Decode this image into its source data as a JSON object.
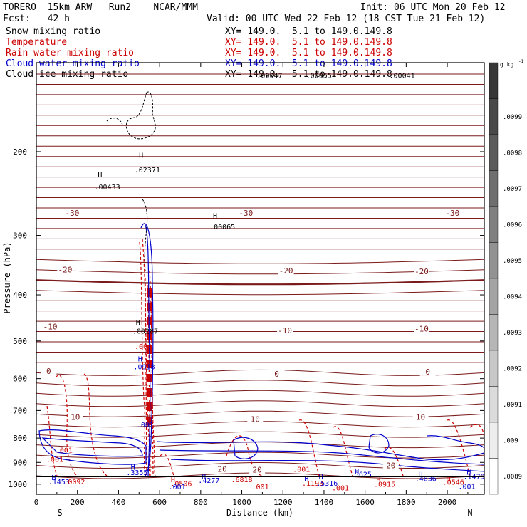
{
  "header": {
    "model": "TORERO  15km ARW   Run2    NCAR/MMM",
    "init": "Init: 06 UTC Mon 20 Feb 12",
    "fcst": "Fcst:   42 h",
    "valid": "Valid: 00 UTC Wed 22 Feb 12 (18 CST Tue 21 Feb 12)"
  },
  "legend": [
    {
      "label": "Snow mixing ratio",
      "xy": "XY= 149.0.  5.1 to 149.0.149.8",
      "color": "#000000"
    },
    {
      "label": "Temperature",
      "xy": "XY= 149.0.  5.1 to 149.0.149.8",
      "color": "#cc0000"
    },
    {
      "label": "Rain water mixing ratio",
      "xy": "XY= 149.0.  5.1 to 149.0.149.8",
      "color": "#cc0000"
    },
    {
      "label": "Cloud water mixing ratio",
      "xy": "XY= 149.0.  5.1 to 149.0.149.8",
      "color": "#0000cc"
    },
    {
      "label": "Cloud ice mixing ratio",
      "xy": "XY= 149.0.  5.1 to 149.0.149.8",
      "color": "#000000"
    }
  ],
  "chart_data": {
    "type": "contour",
    "xlabel": "Distance (km)",
    "ylabel": "Pressure (hPa)",
    "x_ticks": [
      0,
      200,
      400,
      600,
      800,
      1000,
      1200,
      1400,
      1600,
      1800,
      2000
    ],
    "y_ticks": [
      200,
      300,
      400,
      500,
      600,
      700,
      800,
      900,
      1000
    ],
    "xlim": [
      0,
      2180
    ],
    "y_scale": "log",
    "ylim": [
      1050,
      130
    ],
    "endpoints": {
      "left": "S",
      "right": "N"
    },
    "colorbar": {
      "unit": "g kg",
      "unit_exp": "-1",
      "ticks": [
        ".0099",
        ".0098",
        ".0097",
        ".0096",
        ".0095",
        ".0094",
        ".0093",
        ".0092",
        ".0091",
        ".009",
        ".0089"
      ]
    },
    "temperature_labels": [
      {
        "text": "-30",
        "x": 175,
        "p": 270
      },
      {
        "text": "-30",
        "x": 1020,
        "p": 270
      },
      {
        "text": "-30",
        "x": 2025,
        "p": 270
      },
      {
        "text": "-20",
        "x": 140,
        "p": 355
      },
      {
        "text": "-20",
        "x": 1215,
        "p": 357
      },
      {
        "text": "-20",
        "x": 1875,
        "p": 358
      },
      {
        "text": "-10",
        "x": 68,
        "p": 468
      },
      {
        "text": "-10",
        "x": 1210,
        "p": 477
      },
      {
        "text": "-10",
        "x": 1875,
        "p": 473
      },
      {
        "text": "0",
        "x": 60,
        "p": 580
      },
      {
        "text": "0",
        "x": 1170,
        "p": 588
      },
      {
        "text": "0",
        "x": 1905,
        "p": 582
      },
      {
        "text": "10",
        "x": 190,
        "p": 725
      },
      {
        "text": "10",
        "x": 1065,
        "p": 733
      },
      {
        "text": "10",
        "x": 1870,
        "p": 725
      },
      {
        "text": "20",
        "x": 905,
        "p": 932
      },
      {
        "text": "20",
        "x": 1075,
        "p": 935
      },
      {
        "text": "20",
        "x": 1725,
        "p": 917
      }
    ],
    "extrema_labels": [
      {
        "text": "H",
        "x": 310,
        "p": 226,
        "color": "#000000"
      },
      {
        "text": ".00433",
        "x": 345,
        "p": 240,
        "color": "#000000"
      },
      {
        "text": "H",
        "x": 510,
        "p": 206,
        "color": "#000000"
      },
      {
        "text": ".02371",
        "x": 540,
        "p": 221,
        "color": "#000000"
      },
      {
        "text": "H",
        "x": 870,
        "p": 276,
        "color": "#000000"
      },
      {
        "text": ".00065",
        "x": 905,
        "p": 291,
        "color": "#000000"
      },
      {
        "text": ".00047",
        "x": 1135,
        "p": 140,
        "color": "#000000"
      },
      {
        "text": ".00055",
        "x": 1375,
        "p": 140,
        "color": "#000000"
      },
      {
        "text": ".00041",
        "x": 1780,
        "p": 140,
        "color": "#000000"
      },
      {
        "text": "H",
        "x": 495,
        "p": 462,
        "color": "#000000"
      },
      {
        "text": ".00287",
        "x": 530,
        "p": 483,
        "color": "#000000"
      },
      {
        "text": ".004",
        "x": 520,
        "p": 520,
        "color": "#cc0000"
      },
      {
        "text": "H",
        "x": 505,
        "p": 552,
        "color": "#0000cc"
      },
      {
        "text": ".0918",
        "x": 525,
        "p": 573,
        "color": "#0000cc"
      },
      {
        "text": ".001",
        "x": 530,
        "p": 760,
        "color": "#0000cc"
      },
      {
        "text": ".001",
        "x": 135,
        "p": 858,
        "color": "#cc0000"
      },
      {
        "text": ".001",
        "x": 90,
        "p": 898,
        "color": "#cc0000"
      },
      {
        "text": "H",
        "x": 470,
        "p": 933,
        "color": "#0000cc"
      },
      {
        "text": ".3355",
        "x": 490,
        "p": 956,
        "color": "#0000cc"
      },
      {
        "text": "H",
        "x": 85,
        "p": 980,
        "color": "#0000cc"
      },
      {
        "text": ".1453",
        "x": 110,
        "p": 1000,
        "color": "#0000cc"
      },
      {
        "text": ".0092",
        "x": 185,
        "p": 1000,
        "color": "#cc0000"
      },
      {
        "text": "H",
        "x": 665,
        "p": 990,
        "color": "#cc0000"
      },
      {
        "text": ".0506",
        "x": 705,
        "p": 1010,
        "color": "#cc0000"
      },
      {
        "text": ".001",
        "x": 685,
        "p": 1025,
        "color": "#0000cc"
      },
      {
        "text": "H",
        "x": 815,
        "p": 973,
        "color": "#0000cc"
      },
      {
        "text": ".4277",
        "x": 840,
        "p": 993,
        "color": "#0000cc"
      },
      {
        "text": ".6818",
        "x": 1000,
        "p": 990,
        "color": "#cc0000"
      },
      {
        "text": ".001",
        "x": 1090,
        "p": 1025,
        "color": "#cc0000"
      },
      {
        "text": ".001",
        "x": 1290,
        "p": 942,
        "color": "#cc0000"
      },
      {
        "text": "H",
        "x": 1315,
        "p": 985,
        "color": "#0000cc"
      },
      {
        "text": ".1193",
        "x": 1345,
        "p": 1008,
        "color": "#cc0000"
      },
      {
        "text": ".5316",
        "x": 1415,
        "p": 1008,
        "color": "#0000cc"
      },
      {
        "text": "H",
        "x": 1385,
        "p": 975,
        "color": "#0000cc"
      },
      {
        "text": ".001",
        "x": 1480,
        "p": 1030,
        "color": "#cc0000"
      },
      {
        "text": "H",
        "x": 1560,
        "p": 950,
        "color": "#0000cc"
      },
      {
        "text": ".3625",
        "x": 1580,
        "p": 965,
        "color": "#0000cc"
      },
      {
        "text": "H",
        "x": 1665,
        "p": 990,
        "color": "#cc0000"
      },
      {
        "text": ".0915",
        "x": 1695,
        "p": 1013,
        "color": "#cc0000"
      },
      {
        "text": "H",
        "x": 1870,
        "p": 965,
        "color": "#0000cc"
      },
      {
        "text": ".4636",
        "x": 1895,
        "p": 985,
        "color": "#0000cc"
      },
      {
        "text": "H",
        "x": 2005,
        "p": 983,
        "color": "#cc0000"
      },
      {
        "text": ".0546",
        "x": 2030,
        "p": 1003,
        "color": "#cc0000"
      },
      {
        "text": ".001",
        "x": 2095,
        "p": 1023,
        "color": "#0000cc"
      },
      {
        "text": "H",
        "x": 2105,
        "p": 955,
        "color": "#0000cc"
      },
      {
        "text": ".1479",
        "x": 2130,
        "p": 975,
        "color": "#0000cc"
      }
    ]
  }
}
